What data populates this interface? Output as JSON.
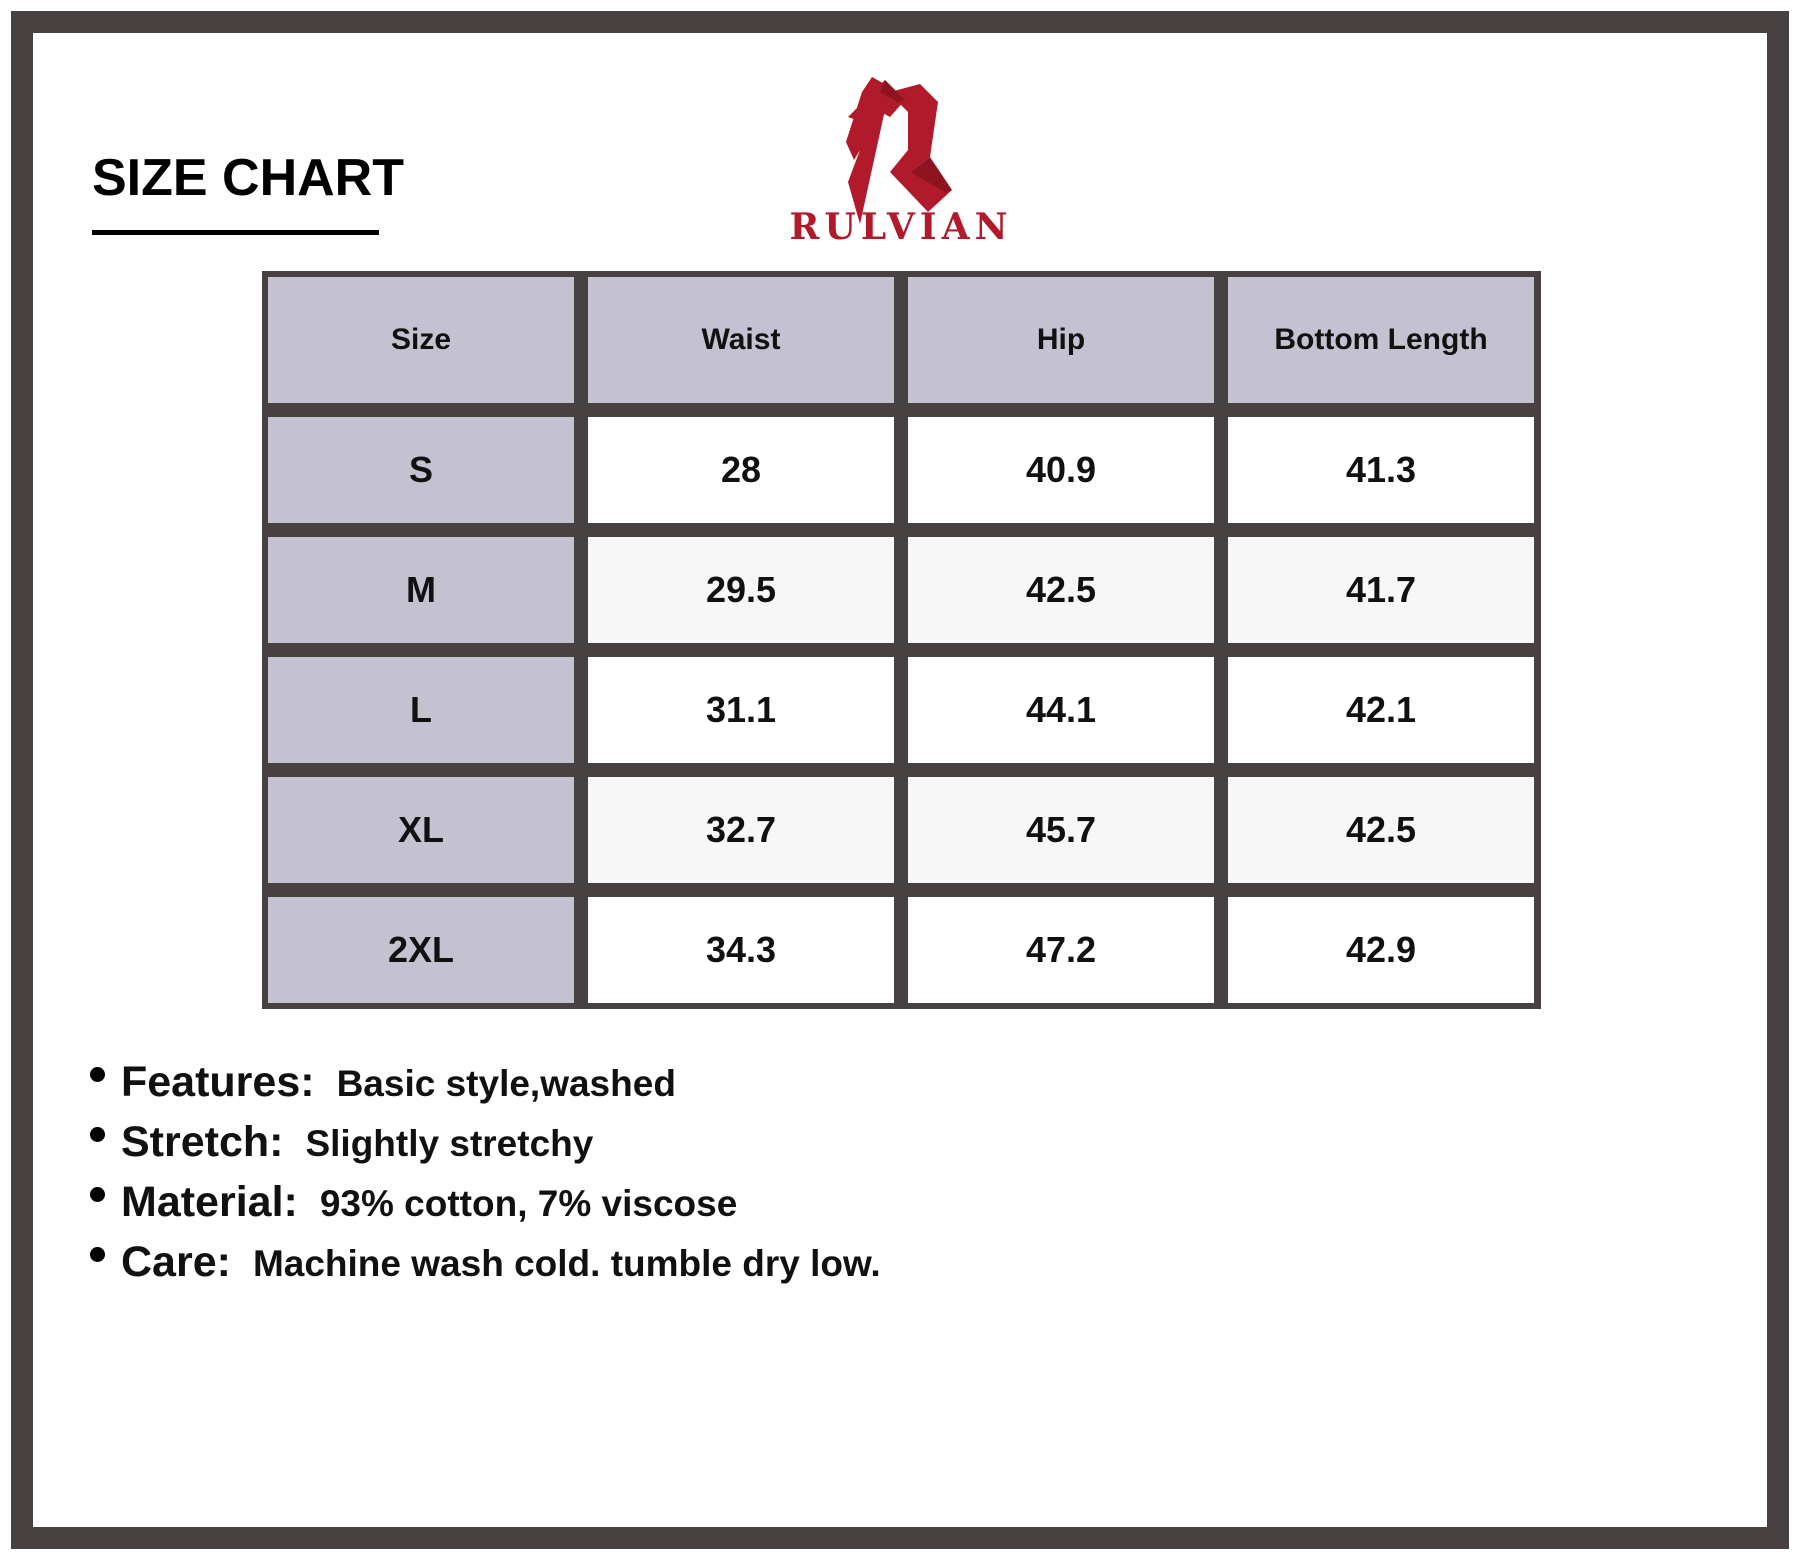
{
  "header": {
    "title": "SIZE CHART",
    "brand": "RULVIAN",
    "brand_color": "#b01a2a",
    "logo_icon": "stylized-R-logo"
  },
  "table": {
    "columns": [
      "Size",
      "Waist",
      "Hip",
      "Bottom Length"
    ],
    "rows": [
      [
        "S",
        "28",
        "40.9",
        "41.3"
      ],
      [
        "M",
        "29.5",
        "42.5",
        "41.7"
      ],
      [
        "L",
        "31.1",
        "44.1",
        "42.1"
      ],
      [
        "XL",
        "32.7",
        "45.7",
        "42.5"
      ],
      [
        "2XL",
        "34.3",
        "47.2",
        "42.9"
      ]
    ],
    "header_color": "#c4c2d0",
    "border_color": "#474142"
  },
  "specs": [
    {
      "label": "Features:",
      "value": "Basic style,washed"
    },
    {
      "label": "Stretch:",
      "value": "Slightly stretchy"
    },
    {
      "label": "Material:",
      "value": "93% cotton, 7% viscose"
    },
    {
      "label": "Care:",
      "value": "Machine wash cold. tumble dry low."
    }
  ]
}
